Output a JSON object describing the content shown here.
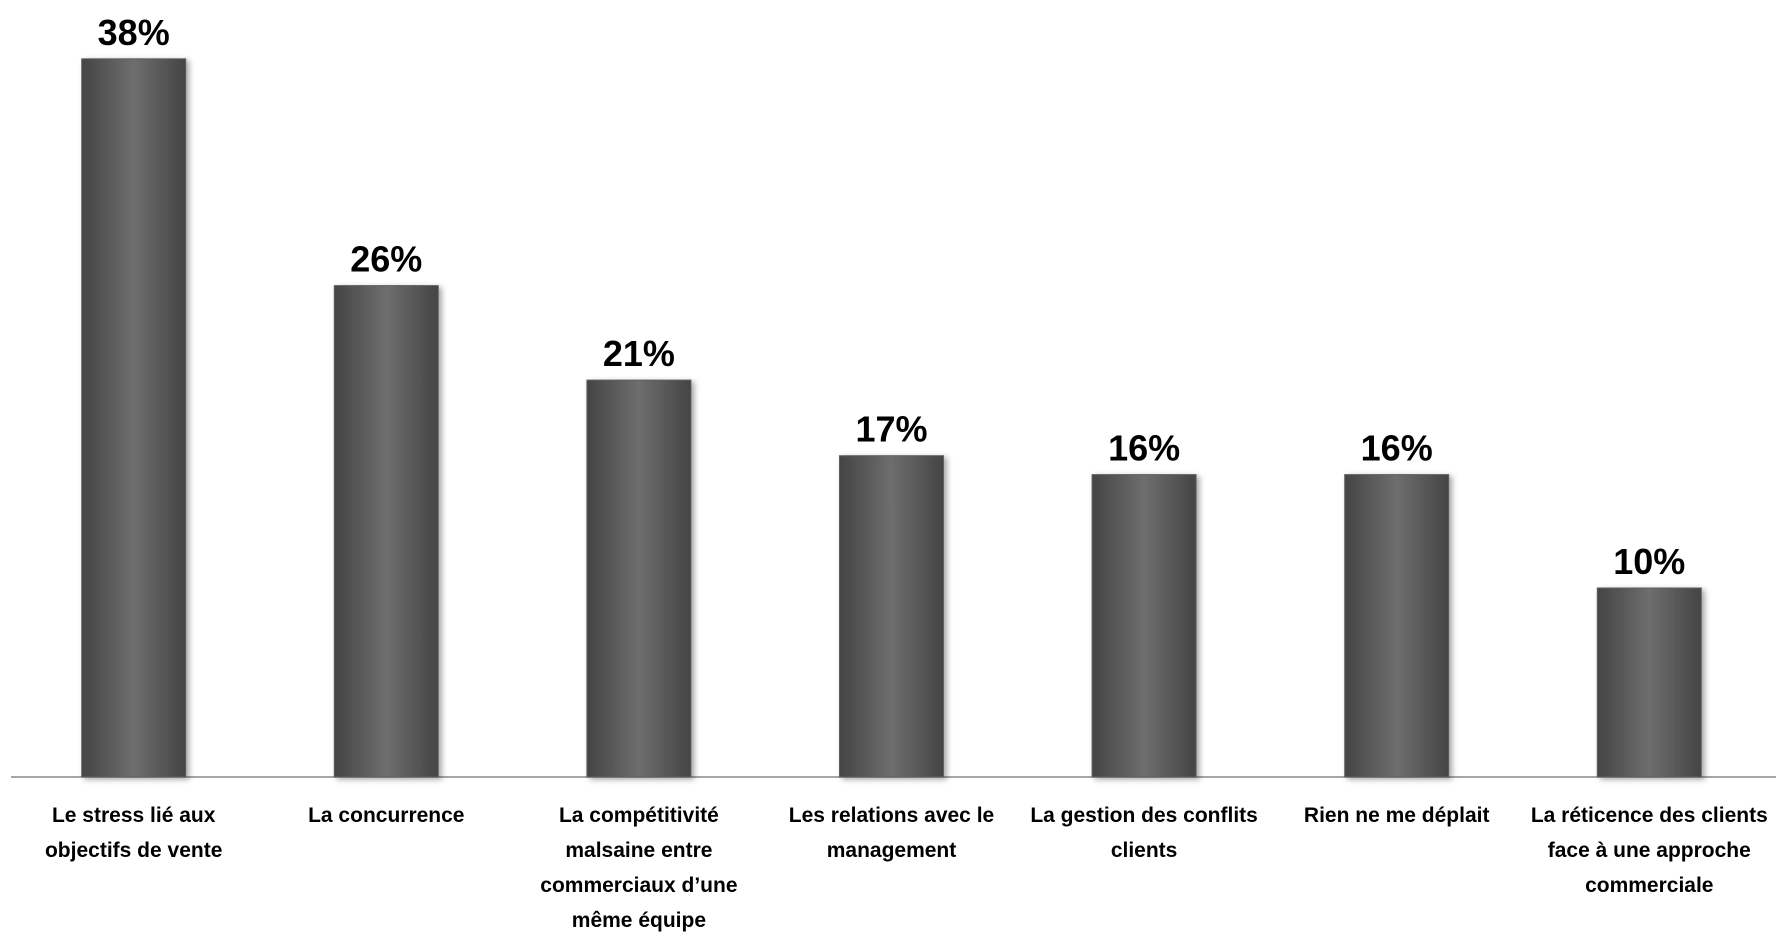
{
  "chart_data": {
    "type": "bar",
    "categories": [
      "Le stress lié aux objectifs de vente",
      "La concurrence",
      "La compétitivité malsaine entre commerciaux d’une même équipe",
      "Les relations avec le management",
      "La gestion des conflits clients",
      "Rien ne me déplait",
      "La réticence des clients face à une approche commerciale"
    ],
    "values": [
      38,
      26,
      21,
      17,
      16,
      16,
      10
    ],
    "value_labels": [
      "38%",
      "26%",
      "21%",
      "17%",
      "16%",
      "16%",
      "10%"
    ],
    "color": "#5f5f5f"
  }
}
